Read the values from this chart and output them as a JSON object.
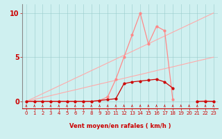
{
  "xlabel": "Vent moyen/en rafales ( km/h )",
  "background_color": "#cff0f0",
  "grid_color": "#99cccc",
  "xlim": [
    -0.5,
    23.5
  ],
  "ylim": [
    -0.8,
    11
  ],
  "yticks": [
    0,
    5,
    10
  ],
  "xticks": [
    0,
    1,
    2,
    3,
    4,
    5,
    6,
    7,
    8,
    9,
    10,
    11,
    12,
    13,
    14,
    15,
    16,
    17,
    18,
    19,
    20,
    21,
    22,
    23
  ],
  "x_vals": [
    0,
    1,
    2,
    3,
    4,
    5,
    6,
    7,
    8,
    9,
    10,
    11,
    12,
    13,
    14,
    15,
    16,
    17,
    18,
    19,
    20,
    21,
    22,
    23
  ],
  "line_diag1_y": [
    0,
    0.22,
    0.43,
    0.65,
    0.87,
    1.09,
    1.3,
    1.52,
    1.74,
    1.96,
    2.17,
    2.39,
    2.61,
    2.83,
    3.04,
    3.26,
    3.48,
    3.7,
    3.91,
    4.13,
    4.35,
    4.57,
    4.78,
    5.0
  ],
  "line_diag2_y": [
    0,
    0.43,
    0.87,
    1.3,
    1.74,
    2.17,
    2.61,
    3.04,
    3.48,
    3.91,
    4.35,
    4.78,
    5.22,
    5.65,
    6.09,
    6.52,
    6.96,
    7.39,
    7.83,
    8.26,
    8.7,
    9.13,
    9.57,
    10.0
  ],
  "line_avg_y": [
    0,
    0,
    0,
    0,
    0,
    0,
    0,
    0,
    0,
    0.1,
    0.2,
    0.3,
    2.0,
    2.2,
    2.3,
    2.4,
    2.5,
    2.2,
    1.5,
    null,
    null,
    0,
    0,
    0
  ],
  "line_gust_y": [
    0,
    0,
    0,
    0,
    0,
    0,
    0,
    0,
    0,
    0.1,
    0.5,
    2.5,
    5.0,
    7.5,
    10.0,
    6.5,
    8.5,
    8.0,
    0.2,
    null,
    null,
    0.0,
    0.05,
    0
  ],
  "line_diag1_color": "#ffaaaa",
  "line_diag2_color": "#ffaaaa",
  "line_avg_color": "#cc0000",
  "line_gust_color": "#ff6666",
  "dark_red": "#cc0000",
  "light_red": "#ff8888"
}
